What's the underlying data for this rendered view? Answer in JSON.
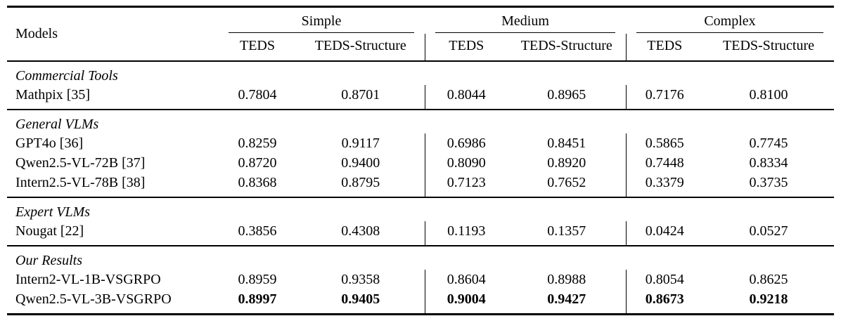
{
  "table": {
    "models_header": "Models",
    "groups": [
      {
        "label": "Simple",
        "metrics": [
          "TEDS",
          "TEDS-Structure"
        ]
      },
      {
        "label": "Medium",
        "metrics": [
          "TEDS",
          "TEDS-Structure"
        ]
      },
      {
        "label": "Complex",
        "metrics": [
          "TEDS",
          "TEDS-Structure"
        ]
      }
    ],
    "sections": [
      {
        "label": "Commercial Tools",
        "rows": [
          {
            "model": "Mathpix [35]",
            "values": [
              "0.7804",
              "0.8701",
              "0.8044",
              "0.8965",
              "0.7176",
              "0.8100"
            ],
            "bold": false
          }
        ]
      },
      {
        "label": "General VLMs",
        "rows": [
          {
            "model": "GPT4o [36]",
            "values": [
              "0.8259",
              "0.9117",
              "0.6986",
              "0.8451",
              "0.5865",
              "0.7745"
            ],
            "bold": false
          },
          {
            "model": "Qwen2.5-VL-72B [37]",
            "values": [
              "0.8720",
              "0.9400",
              "0.8090",
              "0.8920",
              "0.7448",
              "0.8334"
            ],
            "bold": false
          },
          {
            "model": "Intern2.5-VL-78B [38]",
            "values": [
              "0.8368",
              "0.8795",
              "0.7123",
              "0.7652",
              "0.3379",
              "0.3735"
            ],
            "bold": false
          }
        ]
      },
      {
        "label": "Expert VLMs",
        "rows": [
          {
            "model": "Nougat [22]",
            "values": [
              "0.3856",
              "0.4308",
              "0.1193",
              "0.1357",
              "0.0424",
              "0.0527"
            ],
            "bold": false
          }
        ]
      },
      {
        "label": "Our Results",
        "rows": [
          {
            "model": "Intern2-VL-1B-VSGRPO",
            "values": [
              "0.8959",
              "0.9358",
              "0.8604",
              "0.8988",
              "0.8054",
              "0.8625"
            ],
            "bold": false
          },
          {
            "model": "Qwen2.5-VL-3B-VSGRPO",
            "values": [
              "0.8997",
              "0.9405",
              "0.9004",
              "0.9427",
              "0.8673",
              "0.9218"
            ],
            "bold": true
          }
        ]
      }
    ],
    "colors": {
      "text": "#000000",
      "background": "#ffffff",
      "rule": "#000000"
    }
  }
}
